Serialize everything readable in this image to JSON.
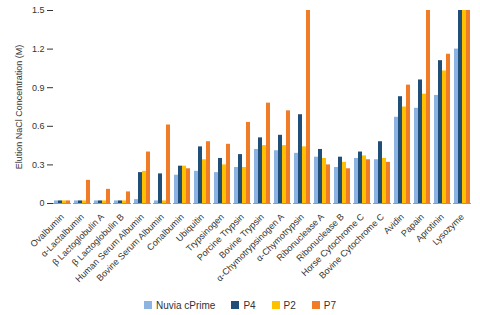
{
  "chart_data": {
    "type": "bar",
    "y_label": "Elution NaCl Concentration (M)",
    "categories": [
      "Ovalbumin",
      "α-Lactalbumin",
      "β Lactoglobulin A",
      "β Lactoglobulin B",
      "Human Serum Albumin",
      "Bovine Serum Albumin",
      "Conalbumin",
      "Ubiquitin",
      "Trypsinogen",
      "Porcine Trypsin",
      "Bovine Trypsin",
      "α-Chymotrypsinogen A",
      "α-Chymotrypsin",
      "Ribonuclease A",
      "Ribonuclease B",
      "Horse Cytochrome C",
      "Bovine Cytochrome C",
      "Avidin",
      "Papain",
      "Aprotinin",
      "Lysozyme"
    ],
    "series": [
      {
        "name": "Nuvia cPrime",
        "color": "#8db3e2",
        "values": [
          0.02,
          0.02,
          0.02,
          0.02,
          0.03,
          0.02,
          0.22,
          0.25,
          0.24,
          0.28,
          0.42,
          0.41,
          0.39,
          0.36,
          0.28,
          0.35,
          0.34,
          0.67,
          0.74,
          0.84,
          1.2
        ]
      },
      {
        "name": "P4",
        "color": "#1f4e79",
        "values": [
          0.02,
          0.02,
          0.02,
          0.02,
          0.24,
          0.23,
          0.29,
          0.44,
          0.35,
          0.38,
          0.51,
          0.53,
          0.69,
          0.42,
          0.36,
          0.4,
          0.48,
          0.83,
          0.96,
          1.11,
          1.5
        ]
      },
      {
        "name": "P2",
        "color": "#ffc000",
        "values": [
          0.02,
          0.02,
          0.02,
          0.02,
          0.25,
          0.02,
          0.29,
          0.34,
          0.3,
          0.28,
          0.45,
          0.45,
          0.44,
          0.35,
          0.32,
          0.37,
          0.35,
          0.75,
          0.85,
          1.03,
          1.5
        ]
      },
      {
        "name": "P7",
        "color": "#f07c28",
        "values": [
          0.02,
          0.18,
          0.11,
          0.09,
          0.4,
          0.61,
          0.27,
          0.48,
          0.46,
          0.63,
          0.78,
          0.72,
          1.5,
          0.3,
          0.27,
          0.34,
          0.32,
          0.92,
          1.5,
          1.16,
          1.5
        ]
      }
    ],
    "ylim": [
      0,
      1.5
    ],
    "yticks": [
      0,
      0.3,
      0.6,
      0.9,
      1.2,
      1.5
    ],
    "grid": false,
    "legend": "bottom"
  }
}
